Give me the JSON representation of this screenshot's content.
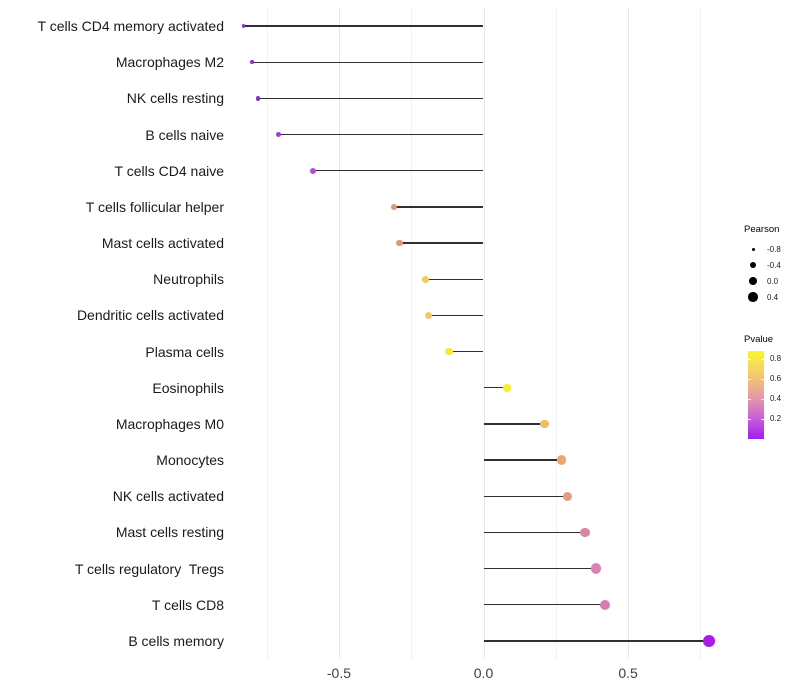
{
  "chart_data": {
    "type": "lollipop",
    "title": "",
    "xlabel": "",
    "ylabel": "",
    "x_axis": {
      "tick_labels": [
        "-0.5",
        "0.0",
        "0.5"
      ],
      "tick_values": [
        -0.5,
        0.0,
        0.5
      ],
      "major_gridline_values": [
        -0.5,
        0.0,
        0.5
      ],
      "minor_gridline_values": [
        -0.75,
        -0.25,
        0.25,
        0.75
      ],
      "xlim": [
        -0.88,
        0.89
      ],
      "grid": "vertical-only",
      "baseline_value": 0.0
    },
    "points": [
      {
        "label": "T cells CD4 memory activated",
        "pearson": -0.83,
        "color": "#9330CE",
        "radius": 1.6
      },
      {
        "label": "Macrophages M2",
        "pearson": -0.8,
        "color": "#932CD2",
        "radius": 1.9
      },
      {
        "label": "NK cells resting",
        "pearson": -0.78,
        "color": "#8F2BD1",
        "radius": 2.2
      },
      {
        "label": "B cells naive",
        "pearson": -0.71,
        "color": "#A03AD8",
        "radius": 2.6
      },
      {
        "label": "T cells CD4 naive",
        "pearson": -0.59,
        "color": "#B14FD2",
        "radius": 3.0
      },
      {
        "label": "T cells follicular helper",
        "pearson": -0.31,
        "color": "#E49478",
        "radius": 3.3
      },
      {
        "label": "Mast cells activated",
        "pearson": -0.29,
        "color": "#E39579",
        "radius": 3.4
      },
      {
        "label": "Neutrophils",
        "pearson": -0.2,
        "color": "#F0CB62",
        "radius": 3.5
      },
      {
        "label": "Dendritic cells activated",
        "pearson": -0.19,
        "color": "#F0C964",
        "radius": 3.6
      },
      {
        "label": "Plasma cells",
        "pearson": -0.12,
        "color": "#F6E83B",
        "radius": 3.8
      },
      {
        "label": "Eosinophils",
        "pearson": 0.08,
        "color": "#F9F021",
        "radius": 4.1
      },
      {
        "label": "Macrophages M0",
        "pearson": 0.21,
        "color": "#EFBE63",
        "radius": 4.4
      },
      {
        "label": "Monocytes",
        "pearson": 0.27,
        "color": "#EAA86F",
        "radius": 4.6
      },
      {
        "label": "NK cells activated",
        "pearson": 0.29,
        "color": "#E59B7B",
        "radius": 4.7
      },
      {
        "label": "Mast cells resting",
        "pearson": 0.35,
        "color": "#D8879E",
        "radius": 4.9
      },
      {
        "label": "T cells regulatory  Tregs",
        "pearson": 0.39,
        "color": "#DC82B2",
        "radius": 5.1
      },
      {
        "label": "T cells CD8",
        "pearson": 0.42,
        "color": "#D67CB6",
        "radius": 5.2
      },
      {
        "label": "B cells memory",
        "pearson": 0.78,
        "color": "#A81BE8",
        "radius": 6.4
      }
    ],
    "legends": {
      "size": {
        "title": "Pearson",
        "entries": [
          {
            "label": "-0.8",
            "radius": 1.5
          },
          {
            "label": "-0.4",
            "radius": 3.0
          },
          {
            "label": "0.0",
            "radius": 3.9
          },
          {
            "label": "0.4",
            "radius": 4.7
          }
        ]
      },
      "color": {
        "title": "Pvalue",
        "tick_labels": [
          "0.8",
          "0.6",
          "0.4",
          "0.2"
        ],
        "gradient_stops": [
          "#FBF721",
          "#F8E64C",
          "#F2C177",
          "#E295AB",
          "#C75DDB",
          "#A21DF0"
        ]
      }
    },
    "style": {
      "stem_color": "#303030",
      "major_grid_color": "#e7e7e7",
      "minor_grid_color": "#f2f2f2",
      "label_color": "#1a1a1a",
      "tick_label_color": "#404040"
    }
  }
}
